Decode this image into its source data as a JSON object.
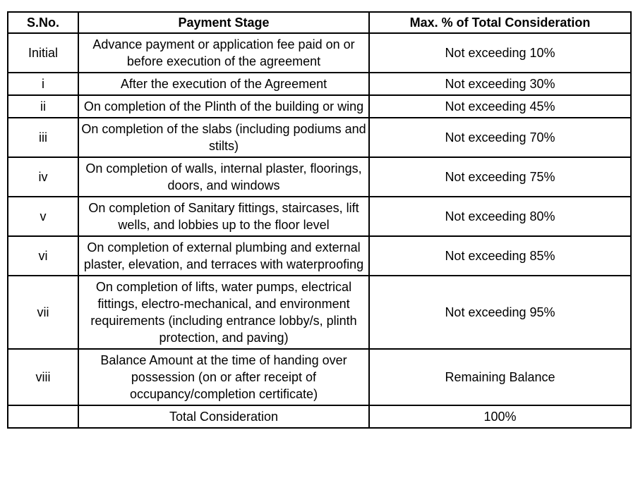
{
  "table": {
    "columns": [
      "S.No.",
      "Payment Stage",
      "Max. % of Total Consideration"
    ],
    "rows": [
      {
        "sno": "Initial",
        "stage": "Advance payment or application fee paid on or before execution of the agreement",
        "max": "Not exceeding 10%"
      },
      {
        "sno": "i",
        "stage": "After the execution of the Agreement",
        "max": "Not exceeding 30%"
      },
      {
        "sno": "ii",
        "stage": "On completion of the Plinth of the building or wing",
        "max": "Not exceeding 45%"
      },
      {
        "sno": "iii",
        "stage": "On completion of the slabs (including podiums and stilts)",
        "max": "Not exceeding 70%"
      },
      {
        "sno": "iv",
        "stage": "On completion of walls, internal plaster, floorings, doors, and windows",
        "max": "Not exceeding 75%"
      },
      {
        "sno": "v",
        "stage": "On completion of Sanitary fittings, staircases, lift wells, and lobbies up to the floor level",
        "max": "Not exceeding 80%"
      },
      {
        "sno": "vi",
        "stage": "On completion of external plumbing and external plaster, elevation, and terraces with waterproofing",
        "max": "Not exceeding 85%"
      },
      {
        "sno": "vii",
        "stage": "On completion of lifts, water pumps, electrical fittings, electro-mechanical, and environment requirements (including entrance lobby/s, plinth protection, and paving)",
        "max": "Not exceeding 95%"
      },
      {
        "sno": "viii",
        "stage": "Balance Amount at the time of handing over possession (on or after receipt of occupancy/completion certificate)",
        "max": "Remaining Balance"
      },
      {
        "sno": "",
        "stage": "Total Consideration",
        "max": "100%"
      }
    ],
    "border_color": "#000000",
    "text_color": "#000000",
    "background_color": "#ffffff"
  }
}
